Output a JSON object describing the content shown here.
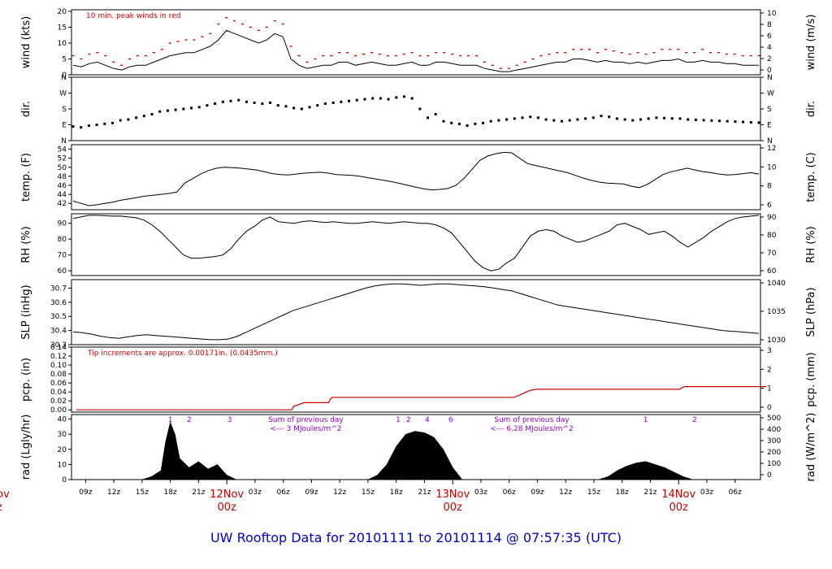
{
  "title": "UW Rooftop Data for 20101111  to  20101114 @ 07:57:35  (UTC)",
  "colors": {
    "peak": "#cc0000",
    "precip": "#cc0000",
    "trace": "#000000",
    "annotation_purple": "#9900cc",
    "title": "#0000cc"
  },
  "chart_data": [
    {
      "type": "line",
      "id": "wind",
      "ylabel_left": "wind (kts)",
      "ylabel_right": "wind (m/s)",
      "ylim": [
        0,
        20.5
      ],
      "yticks_left": [
        0,
        5,
        10,
        15,
        20
      ],
      "yticks_right": [
        "0",
        "2",
        "4",
        "6",
        "8",
        "10"
      ],
      "annotation": "10 min. peak winds in red",
      "series": [
        {
          "values": [
            3,
            2.5,
            3.5,
            4,
            3,
            2,
            1.5,
            2.5,
            3,
            3,
            4,
            5,
            6,
            6.5,
            7,
            7,
            8,
            9,
            11,
            14,
            13,
            12,
            11,
            10,
            11,
            13,
            12,
            5,
            3,
            2,
            2.5,
            3,
            3,
            4,
            4,
            3,
            3.5,
            4,
            3.5,
            3,
            3,
            3.5,
            4,
            3,
            3,
            4,
            4,
            3.5,
            3,
            3,
            3,
            2,
            1.5,
            1,
            1,
            1.5,
            2,
            2.5,
            3,
            3.5,
            4,
            4,
            5,
            5,
            4.5,
            4,
            4.5,
            4,
            4,
            3.5,
            4,
            3.5,
            4,
            4.5,
            4.5,
            5,
            4,
            4,
            4.5,
            4,
            4,
            3.5,
            3.5,
            3,
            3,
            3
          ]
        },
        {
          "name": "10 min. peak winds",
          "values": [
            6,
            5,
            6.5,
            7,
            6,
            4,
            3,
            5,
            6,
            6,
            7,
            8,
            10,
            10.5,
            11,
            11,
            12,
            13,
            16,
            18,
            17,
            16,
            15,
            14,
            15,
            17,
            16,
            9,
            6,
            4,
            5,
            6,
            6,
            7,
            7,
            6,
            6.5,
            7,
            6.5,
            6,
            6,
            6.5,
            7,
            6,
            6,
            7,
            7,
            6.5,
            6,
            6,
            6,
            4,
            3,
            2,
            2,
            3,
            4,
            5,
            6,
            6.5,
            7,
            7,
            8,
            8,
            8,
            7,
            8,
            7.5,
            7,
            6.5,
            7,
            6.5,
            7,
            8,
            8,
            8,
            7,
            7,
            8,
            7,
            7,
            6.5,
            6.5,
            6,
            6,
            6
          ]
        }
      ]
    },
    {
      "type": "scatter",
      "id": "dir",
      "ylabel_left": "dir.",
      "ylabel_right": "dir.",
      "ylim": [
        0,
        360
      ],
      "yticks_left": [
        "N",
        "E",
        "S",
        "W",
        "N"
      ],
      "yticks_right": [
        "N",
        "E",
        "S",
        "W",
        "N"
      ],
      "series": [
        {
          "values": [
            80,
            75,
            85,
            90,
            95,
            100,
            115,
            120,
            130,
            140,
            150,
            165,
            170,
            175,
            180,
            185,
            190,
            200,
            210,
            220,
            225,
            230,
            220,
            215,
            210,
            215,
            200,
            195,
            185,
            180,
            190,
            200,
            210,
            215,
            220,
            225,
            230,
            235,
            240,
            240,
            235,
            245,
            250,
            240,
            180,
            130,
            150,
            110,
            100,
            95,
            85,
            95,
            100,
            110,
            115,
            120,
            125,
            130,
            135,
            130,
            120,
            115,
            110,
            115,
            120,
            125,
            130,
            140,
            135,
            125,
            120,
            115,
            120,
            125,
            130,
            128,
            126,
            125,
            120,
            118,
            116,
            114,
            112,
            110,
            108,
            106,
            104,
            102
          ]
        }
      ]
    },
    {
      "type": "line",
      "id": "temp",
      "ylabel_left": "temp. (F)",
      "ylabel_right": "temp. (C)",
      "ylim": [
        40.6,
        55
      ],
      "yticks_left": [
        42,
        44,
        46,
        48,
        50,
        52,
        54
      ],
      "yticks_right": [
        "6",
        "8",
        "10",
        "12"
      ],
      "series": [
        {
          "values": [
            42.5,
            42,
            41.5,
            41.7,
            42,
            42.3,
            42.7,
            43,
            43.3,
            43.6,
            43.8,
            44,
            44.2,
            44.5,
            46.5,
            47.5,
            48.5,
            49.3,
            49.8,
            50,
            49.9,
            49.8,
            49.6,
            49.4,
            49,
            48.6,
            48.4,
            48.3,
            48.5,
            48.7,
            48.8,
            48.9,
            48.7,
            48.4,
            48.3,
            48.2,
            48,
            47.7,
            47.4,
            47.1,
            46.8,
            46.4,
            46,
            45.6,
            45.2,
            45,
            45.1,
            45.3,
            46,
            47.5,
            49.5,
            51.5,
            52.5,
            53,
            53.3,
            53.2,
            52,
            50.8,
            50.4,
            50,
            49.6,
            49.2,
            48.8,
            48.2,
            47.6,
            47.1,
            46.7,
            46.5,
            46.4,
            46.3,
            45.8,
            45.5,
            46.2,
            47.3,
            48.4,
            49,
            49.4,
            49.8,
            49.4,
            49,
            48.8,
            48.5,
            48.3,
            48.4,
            48.6,
            48.8,
            48.5
          ]
        }
      ]
    },
    {
      "type": "line",
      "id": "rh",
      "ylabel_left": "RH (%)",
      "ylabel_right": "RH (%)",
      "ylim": [
        57,
        96
      ],
      "yticks_left": [
        60,
        70,
        80,
        90
      ],
      "yticks_right": [
        "60",
        "70",
        "80",
        "90"
      ],
      "series": [
        {
          "values": [
            93,
            94,
            95,
            95,
            94.8,
            94.5,
            94.6,
            94,
            93.5,
            92,
            89,
            85,
            80,
            75,
            70,
            68,
            68,
            68.5,
            69,
            70,
            74,
            80,
            85,
            88,
            92,
            94,
            91,
            90.5,
            90,
            91,
            91.5,
            91,
            90.5,
            91,
            90.5,
            90,
            90,
            90.5,
            91,
            90.5,
            90,
            90.5,
            91,
            90.5,
            90,
            90,
            89,
            87,
            84,
            78,
            72,
            66,
            62,
            60,
            61,
            65,
            68,
            75,
            82,
            85,
            86,
            85,
            82,
            80,
            78,
            79,
            81,
            83,
            85,
            89,
            90,
            88,
            86,
            83,
            84,
            85,
            82,
            78,
            75,
            78,
            81,
            85,
            88,
            91,
            93,
            94,
            94.5,
            95
          ]
        }
      ]
    },
    {
      "type": "line",
      "id": "slp",
      "ylabel_left": "SLP (inHg)",
      "ylabel_right": "SLP (hPa)",
      "ylim": [
        30.3,
        30.76
      ],
      "yticks_left": [
        "30.3",
        "30.4",
        "30.5",
        "30.6",
        "30.7"
      ],
      "yticks_right": [
        "1030",
        "1035",
        "1040"
      ],
      "series": [
        {
          "values": [
            30.39,
            30.385,
            30.375,
            30.36,
            30.35,
            30.345,
            30.355,
            30.365,
            30.37,
            30.365,
            30.36,
            30.355,
            30.35,
            30.345,
            30.34,
            30.335,
            30.335,
            30.34,
            30.36,
            30.39,
            30.42,
            30.45,
            30.48,
            30.51,
            30.54,
            30.56,
            30.58,
            30.6,
            30.62,
            30.64,
            30.66,
            30.68,
            30.7,
            30.715,
            30.725,
            30.73,
            30.73,
            30.725,
            30.72,
            30.725,
            30.73,
            30.73,
            30.725,
            30.72,
            30.715,
            30.71,
            30.7,
            30.69,
            30.68,
            30.66,
            30.64,
            30.62,
            30.6,
            30.58,
            30.57,
            30.56,
            30.55,
            30.54,
            30.53,
            30.52,
            30.51,
            30.5,
            30.49,
            30.48,
            30.47,
            30.46,
            30.45,
            30.44,
            30.43,
            30.42,
            30.41,
            30.4,
            30.395,
            30.39,
            30.385,
            30.38
          ]
        }
      ]
    },
    {
      "type": "line",
      "id": "pcp",
      "ylabel_left": "pcp. (in)",
      "ylabel_right": "pcp. (mm)",
      "ylim": [
        -0.005,
        0.14
      ],
      "yticks_left": [
        "0.00",
        "0.02",
        "0.04",
        "0.06",
        "0.08",
        "0.10",
        "0.12",
        "0.14"
      ],
      "yticks_right": [
        "0",
        "1",
        "2",
        "3"
      ],
      "annotation": "Tip increments are approx. 0.00171in. (0.0435mm.)",
      "series": [
        {
          "name": "precipitation",
          "x": [
            0,
            22.9,
            23.1,
            23.7,
            24.2,
            24.3,
            26.8,
            27.0,
            27.2,
            46.5,
            47.0,
            47.6,
            48.3,
            49.0,
            64.1,
            64.4,
            64.6,
            73.3
          ],
          "values": [
            0,
            0,
            0.008,
            0.012,
            0.016,
            0.016,
            0.016,
            0.024,
            0.028,
            0.028,
            0.032,
            0.038,
            0.044,
            0.046,
            0.046,
            0.05,
            0.052,
            0.052
          ]
        }
      ]
    },
    {
      "type": "area",
      "id": "rad",
      "ylabel_left": "rad (Lgly/hr)",
      "ylabel_right": "rad (W/m^2)",
      "ylim": [
        0,
        43
      ],
      "yticks_left": [
        0,
        10,
        20,
        30,
        40
      ],
      "yticks_right": [
        "0",
        "100",
        "200",
        "300",
        "400",
        "500"
      ],
      "annotations": [
        {
          "text": "Sum of previous day",
          "hour": 24.4,
          "row": 0
        },
        {
          "text": "<--- 3 MJoules/m^2",
          "hour": 24.4,
          "row": 1
        },
        {
          "text": "Sum of previous day",
          "hour": 48.4,
          "row": 0
        },
        {
          "text": "<--- 6.28 MJoules/m^2",
          "hour": 48.4,
          "row": 1
        }
      ],
      "markers": [
        {
          "label": "1",
          "hour": 10.0
        },
        {
          "label": "2",
          "hour": 12.0
        },
        {
          "label": "3",
          "hour": 16.3
        },
        {
          "label": "1",
          "hour": 34.2
        },
        {
          "label": "2",
          "hour": 35.3
        },
        {
          "label": "4",
          "hour": 37.3
        },
        {
          "label": "6",
          "hour": 39.8
        },
        {
          "label": "1",
          "hour": 60.5
        },
        {
          "label": "2",
          "hour": 65.7
        }
      ],
      "series": [
        {
          "x": [
            7.0,
            8.0,
            9.0,
            9.5,
            10.0,
            10.5,
            11.0,
            12.0,
            13.0,
            14.0,
            15.0,
            16.0,
            17.0,
            31.0,
            32.0,
            33.0,
            34.0,
            35.0,
            36.0,
            37.0,
            38.0,
            39.0,
            40.0,
            41.0,
            55.5,
            56.5,
            57.5,
            58.5,
            59.5,
            60.5,
            61.5,
            62.5,
            63.5,
            64.5,
            65.5
          ],
          "values": [
            0,
            2,
            6,
            25,
            38,
            30,
            14,
            8,
            12,
            7,
            10,
            3,
            0,
            0,
            3,
            10,
            22,
            30,
            32,
            31,
            28,
            20,
            8,
            0,
            0,
            2,
            6,
            9,
            11,
            12,
            10,
            8,
            5,
            2,
            0
          ]
        }
      ]
    }
  ],
  "x_axis": {
    "hour_labels": [
      {
        "label": "09z",
        "hour": 1.0
      },
      {
        "label": "12z",
        "hour": 4.0
      },
      {
        "label": "15z",
        "hour": 7.0
      },
      {
        "label": "18z",
        "hour": 10.0
      },
      {
        "label": "21z",
        "hour": 13.0
      },
      {
        "label": "03z",
        "hour": 19.0
      },
      {
        "label": "06z",
        "hour": 22.0
      },
      {
        "label": "09z",
        "hour": 25.0
      },
      {
        "label": "12z",
        "hour": 28.0
      },
      {
        "label": "15z",
        "hour": 31.0
      },
      {
        "label": "18z",
        "hour": 34.0
      },
      {
        "label": "21z",
        "hour": 37.0
      },
      {
        "label": "03z",
        "hour": 43.0
      },
      {
        "label": "06z",
        "hour": 46.0
      },
      {
        "label": "09z",
        "hour": 49.0
      },
      {
        "label": "12z",
        "hour": 52.0
      },
      {
        "label": "15z",
        "hour": 55.0
      },
      {
        "label": "18z",
        "hour": 58.0
      },
      {
        "label": "21z",
        "hour": 61.0
      },
      {
        "label": "03z",
        "hour": 67.0
      },
      {
        "label": "06z",
        "hour": 70.0
      }
    ],
    "day_labels": [
      {
        "date": "12Nov",
        "time": "00z",
        "hour": 16.0
      },
      {
        "date": "13Nov",
        "time": "00z",
        "hour": 40.0
      },
      {
        "date": "14Nov",
        "time": "00z",
        "hour": 64.0
      }
    ],
    "edge_label": {
      "date": "ov",
      "time": "z"
    },
    "hour_range": [
      -0.5,
      72.7
    ]
  }
}
